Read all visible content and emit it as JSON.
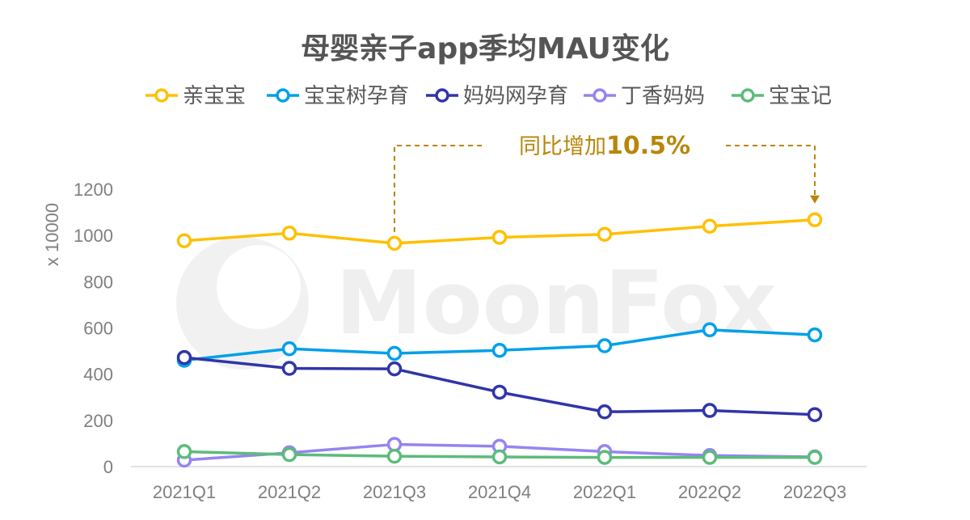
{
  "chart_data": {
    "type": "line",
    "title": "母婴亲子app季均MAU变化",
    "ylabel": "x 10000",
    "xlabel": "",
    "categories": [
      "2021Q1",
      "2021Q2",
      "2021Q3",
      "2021Q4",
      "2022Q1",
      "2022Q2",
      "2022Q3"
    ],
    "yticks": [
      0,
      200,
      400,
      600,
      800,
      1000,
      1200
    ],
    "ylim": [
      0,
      1200
    ],
    "legend_position": "top",
    "series": [
      {
        "name": "亲宝宝",
        "color": "#FFC000",
        "values": [
          977,
          1010,
          966,
          992,
          1005,
          1040,
          1068
        ]
      },
      {
        "name": "宝宝树孕育",
        "color": "#00A0E9",
        "values": [
          460,
          510,
          490,
          503,
          523,
          592,
          570
        ]
      },
      {
        "name": "妈妈网孕育",
        "color": "#3035A8",
        "values": [
          472,
          425,
          423,
          322,
          237,
          243,
          225
        ]
      },
      {
        "name": "丁香妈妈",
        "color": "#9485F0",
        "values": [
          28,
          60,
          96,
          88,
          65,
          48,
          42
        ]
      },
      {
        "name": "宝宝记",
        "color": "#5DBB7A",
        "values": [
          65,
          52,
          45,
          42,
          40,
          40,
          40
        ]
      }
    ],
    "annotation": {
      "text": "同比增加",
      "value_text": "10.5%",
      "from_category": "2021Q3",
      "to_category": "2022Q3",
      "color": "#B8860B"
    },
    "watermark": "MoonFox"
  }
}
